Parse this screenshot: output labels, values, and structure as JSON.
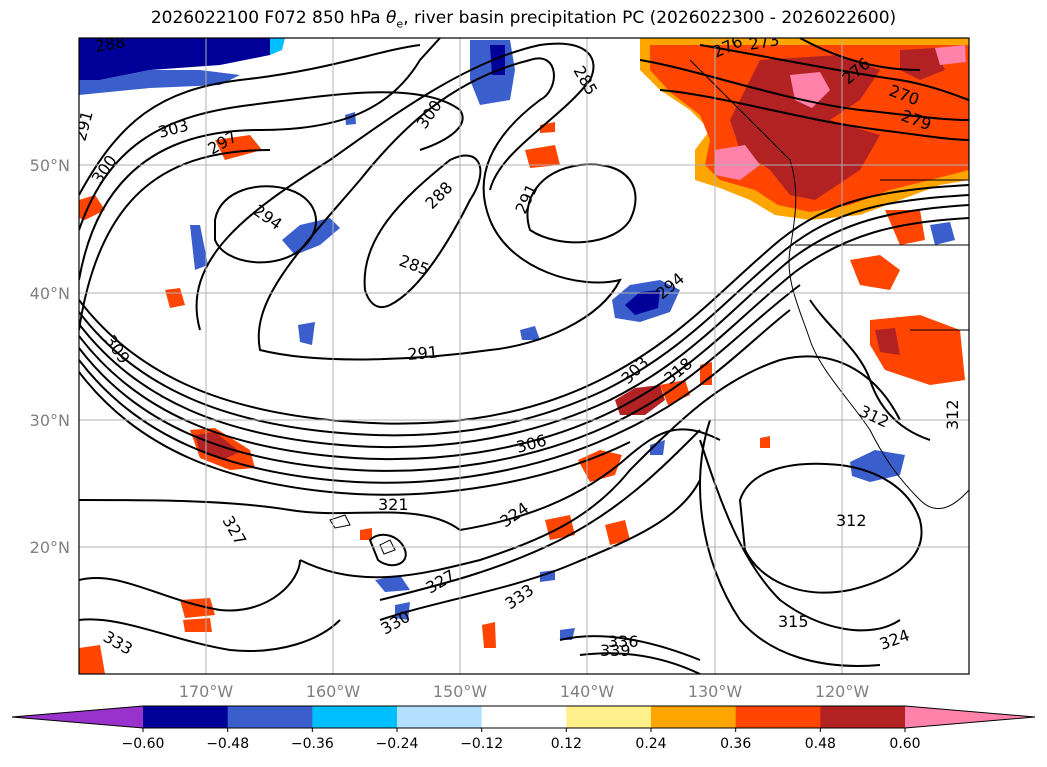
{
  "title": {
    "prefix": "2026022100 F072 850 hPa ",
    "theta": "θ",
    "theta_sub": "e",
    "suffix": ", river basin precipitation PC (2026022300 - 2026022600)"
  },
  "map": {
    "lat_labels": [
      "50°N",
      "40°N",
      "30°N",
      "20°N"
    ],
    "lon_labels": [
      "170°W",
      "160°W",
      "150°W",
      "140°W",
      "130°W",
      "120°W"
    ],
    "contour_labels": [
      "288",
      "291",
      "300",
      "303",
      "297",
      "300",
      "288",
      "291",
      "294",
      "285",
      "291",
      "294",
      "303",
      "318",
      "306",
      "309",
      "321",
      "324",
      "327",
      "330",
      "333",
      "336",
      "339",
      "312",
      "315",
      "324",
      "327",
      "312",
      "312",
      "333",
      "276",
      "276",
      "279",
      "270",
      "273",
      "285"
    ],
    "colors": {
      "neg_strong": "#000099",
      "neg_mid": "#3a5fcd",
      "neg_light": "#00bfff",
      "neg_pale": "#b3e0ff",
      "pos_pale": "#fff08c",
      "pos_light": "#ffa500",
      "pos_mid": "#ff4500",
      "pos_strong": "#b22222",
      "pos_extreme": "#ff82ab"
    }
  },
  "colorbar": {
    "ticks": [
      "−0.60",
      "−0.48",
      "−0.36",
      "−0.24",
      "−0.12",
      "0.12",
      "0.24",
      "0.36",
      "0.48",
      "0.60"
    ],
    "colors": [
      "#9932cc",
      "#000099",
      "#3a5fcd",
      "#00bfff",
      "#b3e0ff",
      "#ffffff",
      "#fff08c",
      "#ffa500",
      "#ff4500",
      "#b22222",
      "#ff82ab"
    ]
  }
}
